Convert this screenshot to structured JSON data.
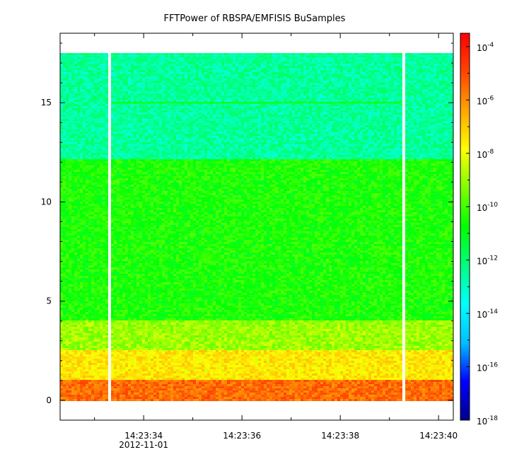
{
  "chart_data": {
    "type": "heatmap",
    "title": "FFTPower of RBSPA/EMFISIS  BuSamples",
    "xlabel": "",
    "ylabel": "",
    "x_ticks": [
      "14:23:34",
      "14:23:36",
      "14:23:38",
      "14:23:40"
    ],
    "x_date_label": "2012-11-01",
    "x_range_seconds": [
      32.3,
      40.3
    ],
    "y_ticks": [
      "0",
      "5",
      "10",
      "15"
    ],
    "y_range": [
      -1,
      18.5
    ],
    "data_y_range": [
      0,
      17.5
    ],
    "data_gaps_seconds": [
      [
        33.25,
        33.35
      ],
      [
        39.25,
        39.35
      ]
    ],
    "colorbar": {
      "scale": "log",
      "range_exponent": [
        -18,
        -3.5
      ],
      "tick_base": "10",
      "tick_exponents": [
        "-4",
        "-6",
        "-8",
        "-10",
        "-12",
        "-14",
        "-16",
        "-18"
      ],
      "colors": [
        "#00008b",
        "#0000ff",
        "#00bfff",
        "#00ffff",
        "#00ff7f",
        "#00ff00",
        "#7fff00",
        "#ffff00",
        "#ffa500",
        "#ff4500",
        "#ff0000"
      ]
    },
    "power_bands": [
      {
        "y_from": 0,
        "y_to": 1.0,
        "log_power": -5.5
      },
      {
        "y_from": 1.0,
        "y_to": 2.5,
        "log_power": -7.5
      },
      {
        "y_from": 2.5,
        "y_to": 4.0,
        "log_power": -9.0
      },
      {
        "y_from": 4.0,
        "y_to": 12.2,
        "log_power": -10.5
      },
      {
        "y_from": 12.2,
        "y_to": 17.5,
        "log_power": -12.5
      }
    ],
    "line_feature": {
      "y": 15.0,
      "log_power": -10.5
    }
  }
}
